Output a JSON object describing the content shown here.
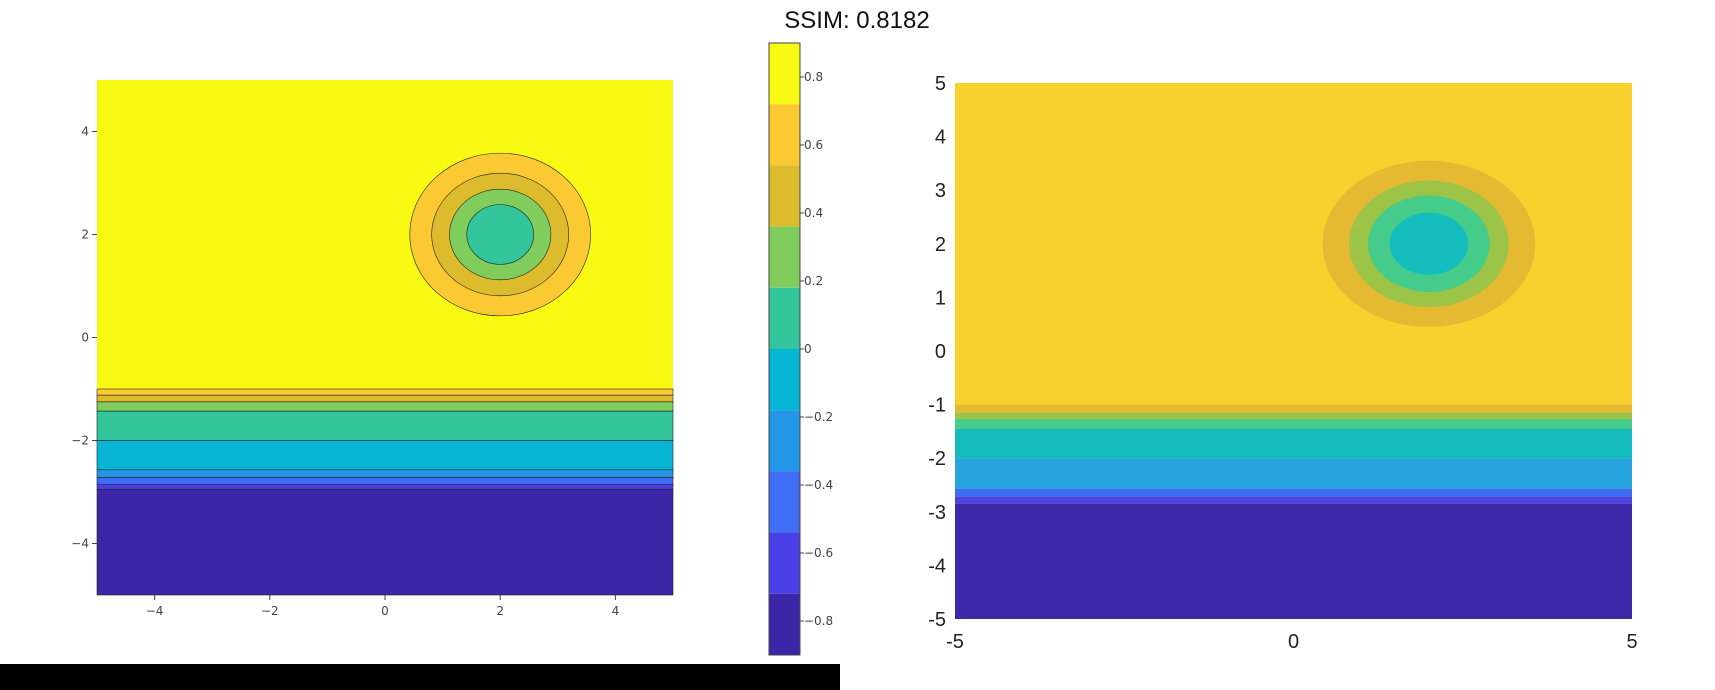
{
  "title": "SSIM: 0.8182",
  "colors": {
    "palette": [
      "#3c26a8",
      "#4a3fe6",
      "#3f6df4",
      "#2396e8",
      "#05b5d3",
      "#33c59c",
      "#80cc5c",
      "#dcbb2d",
      "#fbc932",
      "#f8fa14"
    ],
    "right_palette": [
      "#3b27a8",
      "#4a44e5",
      "#3d6bf5",
      "#27a3e0",
      "#14bdbd",
      "#45cc8a",
      "#9cc447",
      "#e6b933",
      "#f8d12f"
    ],
    "line": "#222222",
    "bottom_bar": "#000000"
  },
  "chart_data": [
    {
      "type": "contour",
      "panel": "left",
      "x_ticks": [
        "−4",
        "−2",
        "0",
        "2",
        "4"
      ],
      "x_tick_values": [
        -4,
        -2,
        0,
        2,
        4
      ],
      "y_ticks": [
        "4",
        "2",
        "0",
        "−2",
        "−4"
      ],
      "y_tick_values": [
        4,
        2,
        0,
        -2,
        -4
      ],
      "xlim": [
        -5,
        5
      ],
      "ylim": [
        -5,
        5
      ],
      "contour_lines": true,
      "circle_center": [
        2,
        2
      ],
      "circle_bands": [
        {
          "radius_x": 1.57,
          "radius_y": 1.58,
          "level_index": 8
        },
        {
          "radius_x": 1.19,
          "radius_y": 1.19,
          "level_index": 7
        },
        {
          "radius_x": 0.88,
          "radius_y": 0.88,
          "level_index": 6
        },
        {
          "radius_x": 0.58,
          "radius_y": 0.58,
          "level_index": 5
        }
      ],
      "horizontal_bands": [
        {
          "y_top": -1.0,
          "y_bottom": -1.12,
          "level_index": 8
        },
        {
          "y_top": -1.12,
          "y_bottom": -1.25,
          "level_index": 7
        },
        {
          "y_top": -1.25,
          "y_bottom": -1.43,
          "level_index": 6
        },
        {
          "y_top": -1.43,
          "y_bottom": -2.0,
          "level_index": 5
        },
        {
          "y_top": -2.0,
          "y_bottom": -2.57,
          "level_index": 4
        },
        {
          "y_top": -2.57,
          "y_bottom": -2.72,
          "level_index": 3
        },
        {
          "y_top": -2.72,
          "y_bottom": -2.85,
          "level_index": 2
        },
        {
          "y_top": -2.85,
          "y_bottom": -2.95,
          "level_index": 1
        },
        {
          "y_top": -2.95,
          "y_bottom": -5.0,
          "level_index": 0
        }
      ],
      "background_level_index": 9
    },
    {
      "type": "colorbar",
      "tick_labels": [
        "0.8",
        "0.6",
        "0.4",
        "0.2",
        "0",
        "−0.2",
        "−0.4",
        "−0.6",
        "−0.8"
      ],
      "tick_values": [
        0.8,
        0.6,
        0.4,
        0.2,
        0,
        -0.2,
        -0.4,
        -0.6,
        -0.8
      ],
      "range": [
        -0.9,
        0.9
      ],
      "levels": 10
    },
    {
      "type": "heatmap",
      "panel": "right",
      "x_ticks": [
        "-5",
        "0",
        "5"
      ],
      "x_tick_values": [
        -5,
        0,
        5
      ],
      "y_ticks": [
        "5",
        "4",
        "3",
        "2",
        "1",
        "0",
        "-1",
        "-2",
        "-3",
        "-4",
        "-5"
      ],
      "y_tick_values": [
        5,
        4,
        3,
        2,
        1,
        0,
        -1,
        -2,
        -3,
        -4,
        -5
      ],
      "xlim": [
        -5,
        5
      ],
      "ylim": [
        -5,
        5
      ],
      "contour_lines": false,
      "circle_center": [
        2,
        2
      ],
      "circle_bands": [
        {
          "radius_x": 1.57,
          "radius_y": 1.55,
          "level_index": 7
        },
        {
          "radius_x": 1.18,
          "radius_y": 1.18,
          "level_index": 6
        },
        {
          "radius_x": 0.9,
          "radius_y": 0.9,
          "level_index": 5
        },
        {
          "radius_x": 0.58,
          "radius_y": 0.58,
          "level_index": 4
        }
      ],
      "horizontal_bands": [
        {
          "y_top": -1.0,
          "y_bottom": -1.15,
          "level_index": 7
        },
        {
          "y_top": -1.15,
          "y_bottom": -1.27,
          "level_index": 6
        },
        {
          "y_top": -1.27,
          "y_bottom": -1.45,
          "level_index": 5
        },
        {
          "y_top": -1.45,
          "y_bottom": -2.0,
          "level_index": 4
        },
        {
          "y_top": -2.0,
          "y_bottom": -2.57,
          "level_index": 3
        },
        {
          "y_top": -2.57,
          "y_bottom": -2.72,
          "level_index": 2
        },
        {
          "y_top": -2.72,
          "y_bottom": -2.85,
          "level_index": 1
        },
        {
          "y_top": -2.85,
          "y_bottom": -5.0,
          "level_index": 0
        }
      ],
      "background_level_index": 8
    }
  ]
}
